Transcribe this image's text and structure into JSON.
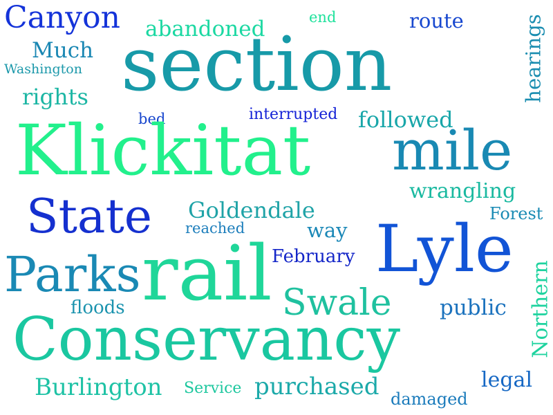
{
  "words": {
    "canyon": {
      "text": "Canyon",
      "color": "#1433d9"
    },
    "abandoned": {
      "text": "abandoned",
      "color": "#1bd8a2"
    },
    "end": {
      "text": "end",
      "color": "#1fe29c"
    },
    "route": {
      "text": "route",
      "color": "#1848cf"
    },
    "hearings": {
      "text": "hearings",
      "color": "#1a8db0"
    },
    "much": {
      "text": "Much",
      "color": "#1a87b3"
    },
    "washington": {
      "text": "Washington",
      "color": "#1b98aa"
    },
    "section": {
      "text": "section",
      "color": "#179aa8"
    },
    "rights": {
      "text": "rights",
      "color": "#1cb6a4"
    },
    "bed": {
      "text": "bed",
      "color": "#1746cd"
    },
    "interrupted": {
      "text": "interrupted",
      "color": "#1422d6"
    },
    "followed": {
      "text": "followed",
      "color": "#18a6a9"
    },
    "klickitat": {
      "text": "Klickitat",
      "color": "#22f08c"
    },
    "mile": {
      "text": "mile",
      "color": "#1989b3"
    },
    "wrangling": {
      "text": "wrangling",
      "color": "#1ab9a0"
    },
    "state": {
      "text": "State",
      "color": "#1530cf"
    },
    "goldendale": {
      "text": "Goldendale",
      "color": "#1fa3a7"
    },
    "reached": {
      "text": "reached",
      "color": "#1b7dbb"
    },
    "way": {
      "text": "way",
      "color": "#1b88b7"
    },
    "forest": {
      "text": "Forest",
      "color": "#1b8bb4"
    },
    "lyle": {
      "text": "Lyle",
      "color": "#1254d6"
    },
    "parks": {
      "text": "Parks",
      "color": "#1a89b4"
    },
    "rail": {
      "text": "rail",
      "color": "#1fd699"
    },
    "february": {
      "text": "February",
      "color": "#1426c8"
    },
    "northern": {
      "text": "Northern",
      "color": "#1fd39f"
    },
    "swale": {
      "text": "Swale",
      "color": "#1fc19f"
    },
    "floods": {
      "text": "floods",
      "color": "#1b93ae"
    },
    "public": {
      "text": "public",
      "color": "#1b72bd"
    },
    "conservancy": {
      "text": "Conservancy",
      "color": "#1ac7a0"
    },
    "legal": {
      "text": "legal",
      "color": "#1668c4"
    },
    "burlington": {
      "text": "Burlington",
      "color": "#1ec2a5"
    },
    "service": {
      "text": "Service",
      "color": "#1cc79e"
    },
    "purchased": {
      "text": "purchased",
      "color": "#1ba9a9"
    },
    "damaged": {
      "text": "damaged",
      "color": "#1b7bbb"
    }
  }
}
